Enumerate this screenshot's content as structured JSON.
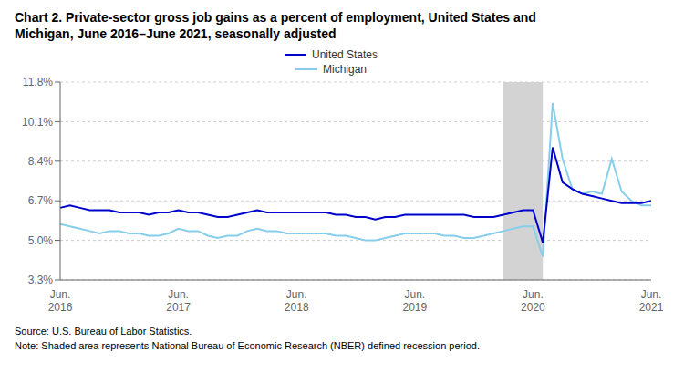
{
  "chart_data": {
    "type": "line",
    "title": "Chart 2. Private-sector gross job gains as a percent of employment, United States and\nMichigan, June 2016–June 2021, seasonally adjusted",
    "source": "Source: U.S. Bureau of Labor Statistics.",
    "note": "Note: Shaded area represents National Bureau of Economic Research (NBER) defined recession period.",
    "categories": [
      "Jun.\n2016",
      null,
      null,
      null,
      null,
      null,
      null,
      null,
      null,
      null,
      null,
      null,
      "Jun.\n2017",
      null,
      null,
      null,
      null,
      null,
      null,
      null,
      null,
      null,
      null,
      null,
      "Jun.\n2018",
      null,
      null,
      null,
      null,
      null,
      null,
      null,
      null,
      null,
      null,
      null,
      "Jun.\n2019",
      null,
      null,
      null,
      null,
      null,
      null,
      null,
      null,
      null,
      null,
      null,
      "Jun.\n2020",
      null,
      null,
      null,
      null,
      null,
      null,
      null,
      null,
      null,
      null,
      null,
      "Jun.\n2021"
    ],
    "series": [
      {
        "name": "United States",
        "color": "#0000CD",
        "values": [
          6.4,
          6.5,
          6.4,
          6.3,
          6.3,
          6.3,
          6.2,
          6.2,
          6.2,
          6.1,
          6.2,
          6.2,
          6.3,
          6.2,
          6.2,
          6.1,
          6.0,
          6.0,
          6.1,
          6.2,
          6.3,
          6.2,
          6.2,
          6.2,
          6.2,
          6.2,
          6.2,
          6.2,
          6.1,
          6.1,
          6.0,
          6.0,
          5.9,
          6.0,
          6.0,
          6.1,
          6.1,
          6.1,
          6.1,
          6.1,
          6.1,
          6.1,
          6.0,
          6.0,
          6.0,
          6.1,
          6.2,
          6.3,
          6.3,
          4.9,
          9.0,
          7.5,
          7.2,
          7.0,
          6.9,
          6.8,
          6.7,
          6.6,
          6.6,
          6.6,
          6.7
        ]
      },
      {
        "name": "Michigan",
        "color": "#87CEEB",
        "values": [
          5.7,
          5.6,
          5.5,
          5.4,
          5.3,
          5.4,
          5.4,
          5.3,
          5.3,
          5.2,
          5.2,
          5.3,
          5.5,
          5.4,
          5.4,
          5.2,
          5.1,
          5.2,
          5.2,
          5.4,
          5.5,
          5.4,
          5.4,
          5.3,
          5.3,
          5.3,
          5.3,
          5.3,
          5.2,
          5.2,
          5.1,
          5.0,
          5.0,
          5.1,
          5.2,
          5.3,
          5.3,
          5.3,
          5.3,
          5.2,
          5.2,
          5.1,
          5.1,
          5.2,
          5.3,
          5.4,
          5.5,
          5.6,
          5.6,
          4.3,
          10.9,
          8.5,
          7.2,
          7.0,
          7.1,
          7.0,
          8.5,
          7.1,
          6.7,
          6.5,
          6.5
        ]
      }
    ],
    "shaded": {
      "from": 45,
      "to": 49,
      "color": "#D3D3D3"
    },
    "ylim": [
      3.3,
      11.8
    ],
    "yticks": [
      {
        "value": 3.3,
        "label": "3.3%"
      },
      {
        "value": 5.0,
        "label": "5.0%"
      },
      {
        "value": 6.7,
        "label": "6.7%"
      },
      {
        "value": 8.4,
        "label": "8.4%"
      },
      {
        "value": 10.1,
        "label": "10.1%"
      },
      {
        "value": 11.8,
        "label": "11.8%"
      }
    ],
    "grid": true,
    "legend": "top"
  }
}
